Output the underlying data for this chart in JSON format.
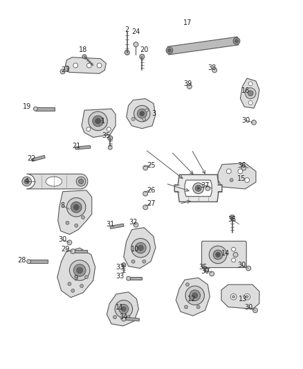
{
  "background_color": "#ffffff",
  "figsize": [
    4.38,
    5.33
  ],
  "dpi": 100,
  "line_color": "#555555",
  "label_color": "#222222",
  "label_fontsize": 7.0,
  "labels": [
    [
      "1",
      148,
      173
    ],
    [
      "2",
      183,
      38
    ],
    [
      "3",
      222,
      162
    ],
    [
      "4",
      35,
      262
    ],
    [
      "8",
      88,
      298
    ],
    [
      "9",
      107,
      405
    ],
    [
      "10",
      195,
      362
    ],
    [
      "11",
      172,
      448
    ],
    [
      "12",
      278,
      435
    ],
    [
      "13",
      354,
      435
    ],
    [
      "14",
      328,
      368
    ],
    [
      "15",
      352,
      258
    ],
    [
      "16",
      358,
      128
    ],
    [
      "17",
      272,
      28
    ],
    [
      "18",
      118,
      68
    ],
    [
      "19",
      35,
      152
    ],
    [
      "20",
      208,
      68
    ],
    [
      "21",
      108,
      210
    ],
    [
      "22",
      42,
      228
    ],
    [
      "23",
      92,
      98
    ],
    [
      "24",
      196,
      42
    ],
    [
      "25",
      218,
      238
    ],
    [
      "26",
      218,
      275
    ],
    [
      "27",
      218,
      295
    ],
    [
      "28",
      28,
      378
    ],
    [
      "29",
      92,
      362
    ],
    [
      "30",
      358,
      172
    ],
    [
      "30",
      352,
      385
    ],
    [
      "30",
      88,
      348
    ],
    [
      "30",
      298,
      395
    ],
    [
      "30",
      362,
      448
    ],
    [
      "31",
      158,
      325
    ],
    [
      "32",
      192,
      322
    ],
    [
      "33",
      172,
      388
    ],
    [
      "33",
      172,
      402
    ],
    [
      "34",
      178,
      462
    ],
    [
      "35",
      152,
      195
    ],
    [
      "35",
      338,
      318
    ],
    [
      "35",
      295,
      388
    ],
    [
      "36",
      352,
      238
    ],
    [
      "37",
      298,
      268
    ],
    [
      "38",
      308,
      95
    ],
    [
      "39",
      272,
      118
    ]
  ],
  "leader_lines": [
    [
      148,
      172,
      138,
      172
    ],
    [
      35,
      262,
      48,
      262
    ],
    [
      88,
      298,
      98,
      303
    ],
    [
      218,
      238,
      208,
      240
    ],
    [
      218,
      273,
      210,
      278
    ],
    [
      218,
      295,
      210,
      298
    ],
    [
      92,
      362,
      102,
      365
    ],
    [
      88,
      348,
      98,
      352
    ],
    [
      298,
      393,
      308,
      396
    ],
    [
      362,
      447,
      372,
      452
    ],
    [
      352,
      385,
      362,
      390
    ],
    [
      338,
      318,
      348,
      325
    ],
    [
      295,
      388,
      305,
      390
    ],
    [
      352,
      238,
      362,
      242
    ],
    [
      298,
      268,
      308,
      272
    ],
    [
      358,
      172,
      368,
      175
    ]
  ]
}
